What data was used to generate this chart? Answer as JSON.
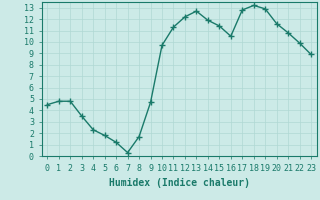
{
  "x": [
    0,
    1,
    2,
    3,
    4,
    5,
    6,
    7,
    8,
    9,
    10,
    11,
    12,
    13,
    14,
    15,
    16,
    17,
    18,
    19,
    20,
    21,
    22,
    23
  ],
  "y": [
    4.5,
    4.8,
    4.8,
    3.5,
    2.3,
    1.8,
    1.2,
    0.3,
    1.7,
    4.7,
    9.7,
    11.3,
    12.2,
    12.7,
    11.9,
    11.4,
    10.5,
    12.8,
    13.2,
    12.9,
    11.6,
    10.8,
    9.9,
    8.9
  ],
  "line_color": "#1a7a6a",
  "marker": "+",
  "marker_size": 4,
  "bg_color": "#cceae7",
  "grid_color": "#b0d8d4",
  "xlabel": "Humidex (Indice chaleur)",
  "xlim": [
    -0.5,
    23.5
  ],
  "ylim": [
    0,
    13.5
  ],
  "xticks": [
    0,
    1,
    2,
    3,
    4,
    5,
    6,
    7,
    8,
    9,
    10,
    11,
    12,
    13,
    14,
    15,
    16,
    17,
    18,
    19,
    20,
    21,
    22,
    23
  ],
  "yticks": [
    0,
    1,
    2,
    3,
    4,
    5,
    6,
    7,
    8,
    9,
    10,
    11,
    12,
    13
  ],
  "tick_fontsize": 6.0,
  "label_fontsize": 7.0,
  "linewidth": 1.0
}
